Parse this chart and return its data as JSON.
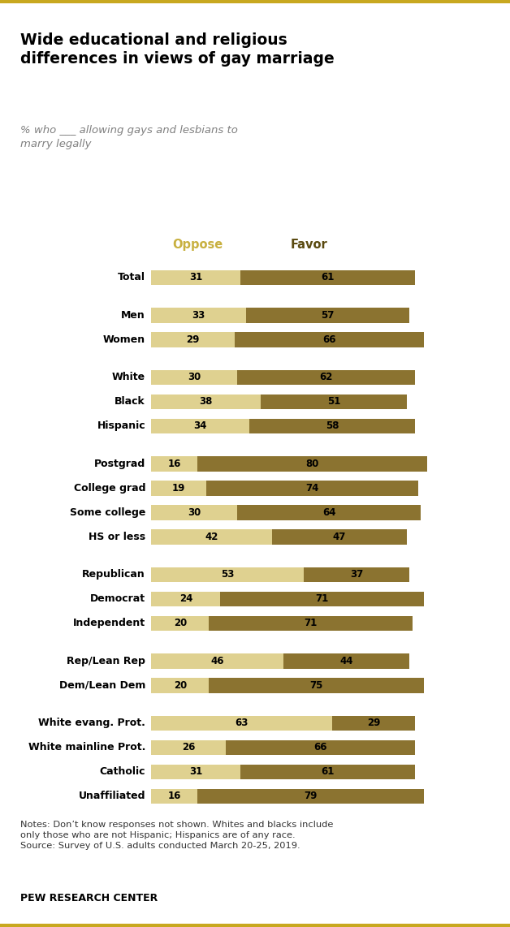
{
  "title": "Wide educational and religious\ndifferences in views of gay marriage",
  "subtitle": "% who ___ allowing gays and lesbians to\nmarry legally",
  "categories": [
    "Total",
    "Men",
    "Women",
    "White",
    "Black",
    "Hispanic",
    "Postgrad",
    "College grad",
    "Some college",
    "HS or less",
    "Republican",
    "Democrat",
    "Independent",
    "Rep/Lean Rep",
    "Dem/Lean Dem",
    "White evang. Prot.",
    "White mainline Prot.",
    "Catholic",
    "Unaffiliated"
  ],
  "oppose": [
    31,
    33,
    29,
    30,
    38,
    34,
    16,
    19,
    30,
    42,
    53,
    24,
    20,
    46,
    20,
    63,
    26,
    31,
    16
  ],
  "favor": [
    61,
    57,
    66,
    62,
    51,
    58,
    80,
    74,
    64,
    47,
    37,
    71,
    71,
    44,
    75,
    29,
    66,
    61,
    79
  ],
  "oppose_color": "#dfd190",
  "favor_color": "#8b7330",
  "bar_height": 0.62,
  "notes": "Notes: Don’t know responses not shown. Whites and blacks include\nonly those who are not Hispanic; Hispanics are of any race.\nSource: Survey of U.S. adults conducted March 20-25, 2019.",
  "footer": "PEW RESEARCH CENTER",
  "bg_color": "#ffffff",
  "oppose_header_color": "#c8b040",
  "favor_header_color": "#5a4a10",
  "group_breaks_after": [
    0,
    2,
    5,
    9,
    12,
    14
  ]
}
